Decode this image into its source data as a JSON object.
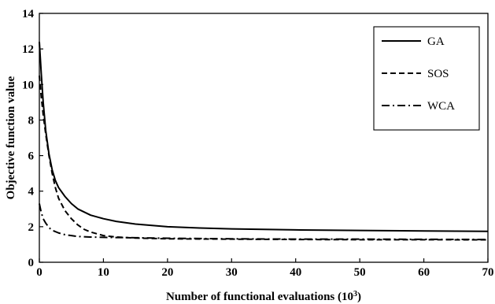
{
  "chart_data": {
    "type": "line",
    "title": "",
    "xlabel": "Number of functional evaluations (10",
    "xlabel_sup": "3",
    "xlabel_end": ")",
    "ylabel": "Objective function value",
    "xlim": [
      0,
      70
    ],
    "ylim": [
      0,
      14
    ],
    "xticks": [
      0,
      10,
      20,
      30,
      40,
      50,
      60,
      70
    ],
    "yticks": [
      0,
      2,
      4,
      6,
      8,
      10,
      12,
      14
    ],
    "grid": false,
    "legend_position": "top-right",
    "series": [
      {
        "name": "GA",
        "style": "solid",
        "x": [
          0,
          0.3,
          0.6,
          1,
          1.5,
          2,
          2.5,
          3,
          4,
          5,
          6,
          8,
          10,
          12,
          15,
          20,
          25,
          30,
          40,
          50,
          60,
          70
        ],
        "y": [
          12.4,
          10.6,
          9.0,
          7.4,
          6.1,
          5.2,
          4.6,
          4.2,
          3.7,
          3.3,
          3.0,
          2.65,
          2.45,
          2.3,
          2.15,
          2.0,
          1.93,
          1.88,
          1.82,
          1.79,
          1.76,
          1.74
        ]
      },
      {
        "name": "SOS",
        "style": "dashed",
        "x": [
          0,
          0.3,
          0.6,
          1,
          1.5,
          2,
          2.5,
          3,
          4,
          5,
          6,
          7,
          8,
          10,
          12,
          15,
          20,
          30,
          40,
          50,
          60,
          70
        ],
        "y": [
          10.5,
          9.3,
          8.3,
          7.2,
          6.0,
          5.0,
          4.2,
          3.6,
          2.9,
          2.45,
          2.1,
          1.85,
          1.7,
          1.5,
          1.42,
          1.36,
          1.32,
          1.3,
          1.28,
          1.27,
          1.27,
          1.26
        ]
      },
      {
        "name": "WCA",
        "style": "dashdot",
        "x": [
          0,
          0.3,
          0.6,
          1,
          1.5,
          2,
          3,
          4,
          5,
          6,
          8,
          10,
          15,
          20,
          30,
          40,
          50,
          60,
          70
        ],
        "y": [
          3.3,
          2.8,
          2.45,
          2.2,
          1.95,
          1.8,
          1.65,
          1.55,
          1.5,
          1.45,
          1.42,
          1.4,
          1.38,
          1.35,
          1.32,
          1.3,
          1.3,
          1.29,
          1.28
        ]
      }
    ]
  }
}
